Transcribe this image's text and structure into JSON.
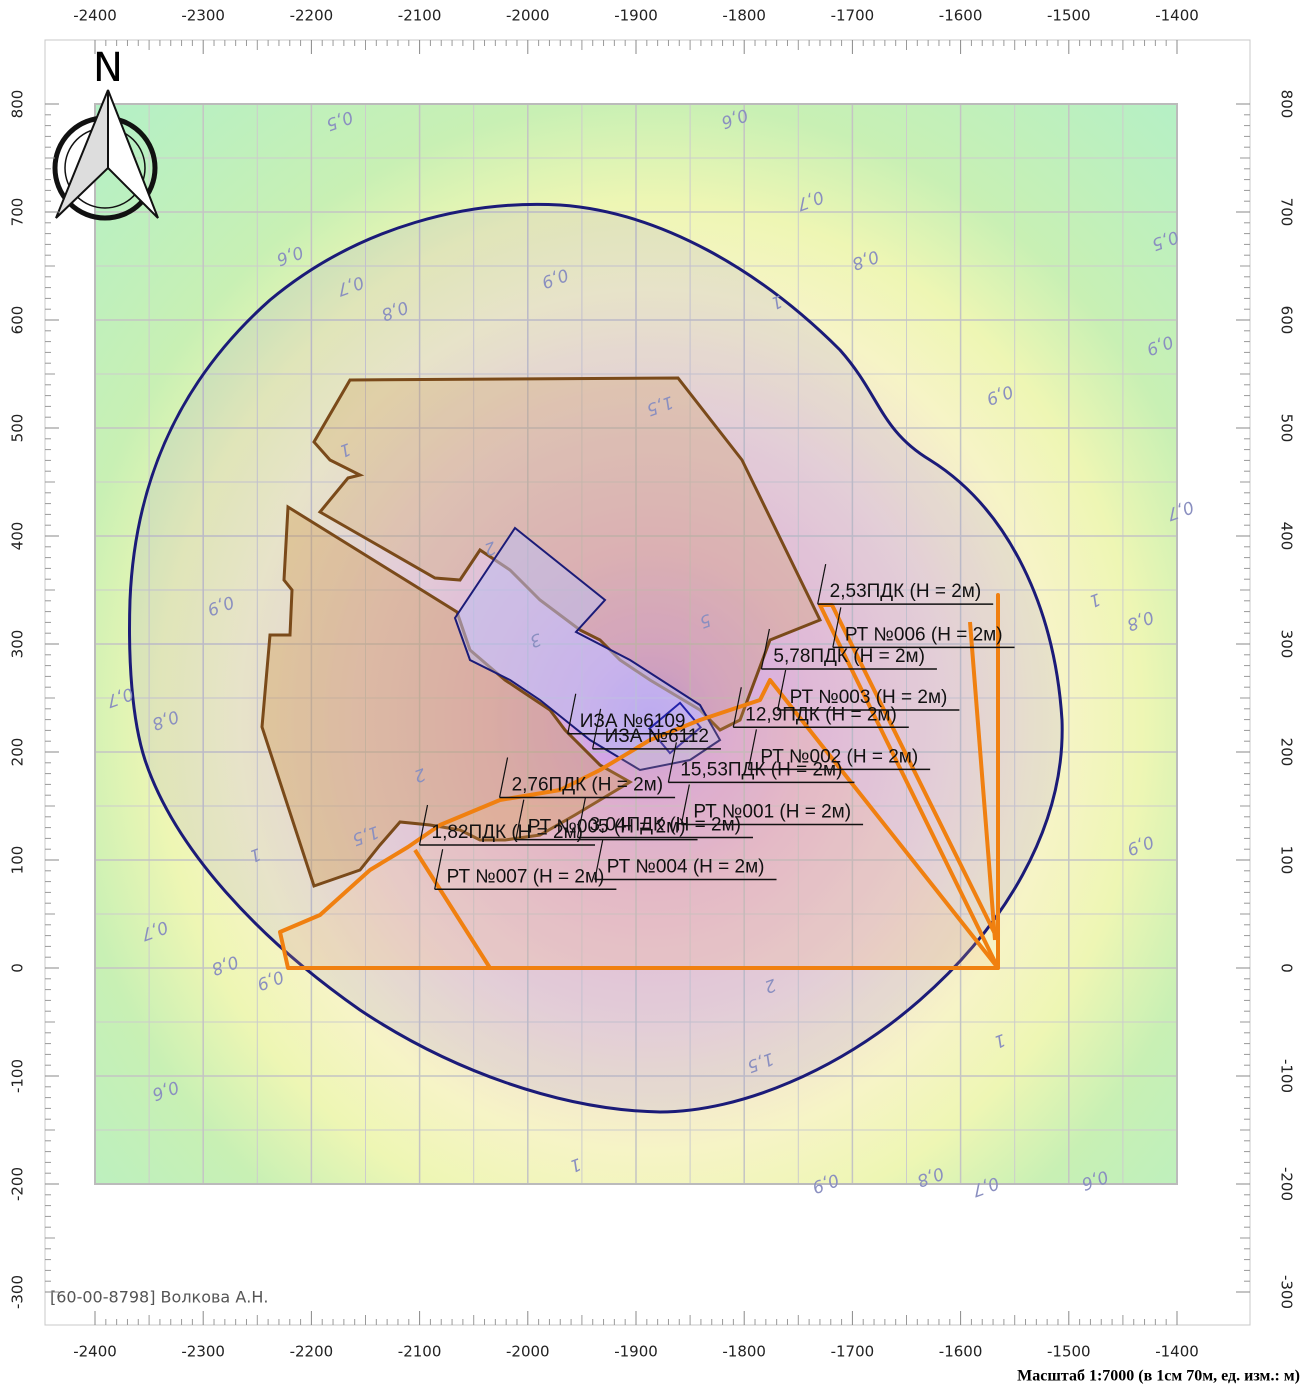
{
  "map": {
    "xticks": [
      -2400,
      -2300,
      -2200,
      -2100,
      -2000,
      -1900,
      -1800,
      -1700,
      -1600,
      -1500,
      -1400
    ],
    "yticks": [
      800,
      700,
      600,
      500,
      400,
      300,
      200,
      100,
      0,
      -100,
      -200,
      -300
    ],
    "north": "N",
    "contour_labels": [
      {
        "text": "0,5",
        "x": -2174,
        "y": 785
      },
      {
        "text": "0,6",
        "x": -1809,
        "y": 787
      },
      {
        "text": "0,7",
        "x": -1739,
        "y": 711
      },
      {
        "text": "0,5",
        "x": -1411,
        "y": 674
      },
      {
        "text": "0,6",
        "x": -2220,
        "y": 660
      },
      {
        "text": "0,9",
        "x": -1975,
        "y": 639
      },
      {
        "text": "0,8",
        "x": -1688,
        "y": 656
      },
      {
        "text": "0,7",
        "x": -2164,
        "y": 632
      },
      {
        "text": "0,8",
        "x": -2123,
        "y": 609
      },
      {
        "text": "1",
        "x": -1770,
        "y": 617
      },
      {
        "text": "0,9",
        "x": -1416,
        "y": 577
      },
      {
        "text": "0,9",
        "x": -1564,
        "y": 531
      },
      {
        "text": "1,5",
        "x": -1878,
        "y": 521
      },
      {
        "text": "1",
        "x": -2169,
        "y": 480
      },
      {
        "text": "0,7",
        "x": -1397,
        "y": 424
      },
      {
        "text": "2",
        "x": -2035,
        "y": 389
      },
      {
        "text": "0,9",
        "x": -2284,
        "y": 336
      },
      {
        "text": "5",
        "x": -1836,
        "y": 322
      },
      {
        "text": "1",
        "x": -1476,
        "y": 341
      },
      {
        "text": "0,8",
        "x": -1434,
        "y": 322
      },
      {
        "text": "3",
        "x": -1993,
        "y": 304
      },
      {
        "text": "0,7",
        "x": -2377,
        "y": 251
      },
      {
        "text": "0,8",
        "x": -2335,
        "y": 230
      },
      {
        "text": "2",
        "x": -2100,
        "y": 179
      },
      {
        "text": "1,5",
        "x": -2150,
        "y": 123
      },
      {
        "text": "1",
        "x": -2252,
        "y": 105
      },
      {
        "text": "0,9",
        "x": -1434,
        "y": 114
      },
      {
        "text": "0,7",
        "x": -2345,
        "y": 35
      },
      {
        "text": "0,8",
        "x": -2280,
        "y": 3
      },
      {
        "text": "0,9",
        "x": -2238,
        "y": -11
      },
      {
        "text": "2",
        "x": -1776,
        "y": -16
      },
      {
        "text": "1",
        "x": -1564,
        "y": -67
      },
      {
        "text": "1,5",
        "x": -1785,
        "y": -87
      },
      {
        "text": "0,6",
        "x": -2335,
        "y": -113
      },
      {
        "text": "1",
        "x": -1956,
        "y": -182
      },
      {
        "text": "0,9",
        "x": -1725,
        "y": -199
      },
      {
        "text": "0,8",
        "x": -1628,
        "y": -193
      },
      {
        "text": "0,7",
        "x": -1577,
        "y": -202
      },
      {
        "text": "0,6",
        "x": -1476,
        "y": -196
      }
    ],
    "point_labels": [
      {
        "text": "2,53ПДК (Н = 2м)",
        "x": -1721,
        "y": 348
      },
      {
        "text": "РТ №006 (Н = 2м)",
        "x": -1707,
        "y": 308
      },
      {
        "text": "5,78ПДК (Н = 2м)",
        "x": -1773,
        "y": 288
      },
      {
        "text": "РТ №003 (Н = 2м)",
        "x": -1758,
        "y": 250
      },
      {
        "text": "12,9ПДК (Н = 2м)",
        "x": -1799,
        "y": 234
      },
      {
        "text": "РТ №002 (Н = 2м)",
        "x": -1785,
        "y": 195
      },
      {
        "text": "15,53ПДК (Н = 2м)",
        "x": -1859,
        "y": 183
      },
      {
        "text": "РТ №001 (Н = 2м)",
        "x": -1847,
        "y": 144
      },
      {
        "text": "2,76ПДК (Н = 2м)",
        "x": -2015,
        "y": 169
      },
      {
        "text": "РТ №005 (Н = 2м)",
        "x": -2000,
        "y": 130
      },
      {
        "text": "3,04ПДК (Н = 2м)",
        "x": -1943,
        "y": 132
      },
      {
        "text": "1,82ПДК (Н = 2м)",
        "x": -2089,
        "y": 125
      },
      {
        "text": "РТ №004 (Н = 2м)",
        "x": -1927,
        "y": 93
      },
      {
        "text": "РТ №007 (Н = 2м)",
        "x": -2075,
        "y": 84
      },
      {
        "text": "ИЗА №6109",
        "x": -1952,
        "y": 228
      },
      {
        "text": "ИЗА №6112",
        "x": -1929,
        "y": 214
      }
    ],
    "author": "[60-00-8798] Волкова А.Н.",
    "scale": "Масштаб 1:7000 (в 1см 70м, ед. изм.: м)"
  }
}
